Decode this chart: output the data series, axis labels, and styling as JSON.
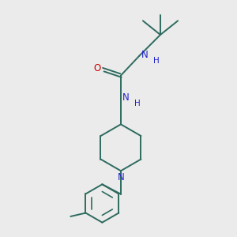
{
  "background_color": "#ebebeb",
  "bond_color": "#2d6b5e",
  "N_color": "#2020cc",
  "O_color": "#cc0000",
  "bond_width": 1.4,
  "figsize": [
    3.0,
    3.0
  ],
  "dpi": 100,
  "xlim": [
    0,
    10
  ],
  "ylim": [
    0,
    10
  ]
}
